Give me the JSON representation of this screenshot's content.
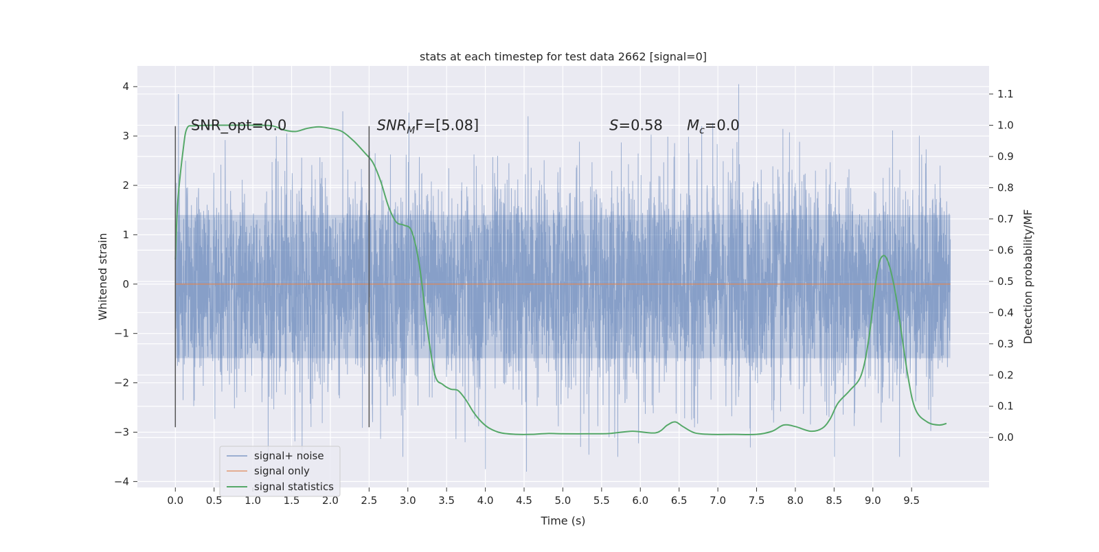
{
  "chart_data": {
    "type": "line",
    "title": "stats at each timestep for test data 2662 [signal=0]",
    "xlabel": "Time (s)",
    "ylabel": "Whitened strain",
    "y2label": "Detection probability/MF",
    "xlim": [
      -0.49,
      10.5
    ],
    "ylim": [
      -4.12,
      4.42
    ],
    "y2lim": [
      -0.16,
      1.19
    ],
    "x_ticks": [
      0.0,
      0.5,
      1.0,
      1.5,
      2.0,
      2.5,
      3.0,
      3.5,
      4.0,
      4.5,
      5.0,
      5.5,
      6.0,
      6.5,
      7.0,
      7.5,
      8.0,
      8.5,
      9.0,
      9.5
    ],
    "x_tick_labels": [
      "0.0",
      "0.5",
      "1.0",
      "1.5",
      "2.0",
      "2.5",
      "3.0",
      "3.5",
      "4.0",
      "4.5",
      "5.0",
      "5.5",
      "6.0",
      "6.5",
      "7.0",
      "7.5",
      "8.0",
      "8.5",
      "9.0",
      "9.5"
    ],
    "y_ticks": [
      -4,
      -3,
      -2,
      -1,
      0,
      1,
      2,
      3,
      4
    ],
    "y_tick_labels": [
      "−4",
      "−3",
      "−2",
      "−1",
      "0",
      "1",
      "2",
      "3",
      "4"
    ],
    "y2_ticks": [
      0.0,
      0.1,
      0.2,
      0.3,
      0.4,
      0.5,
      0.6,
      0.7,
      0.8,
      0.9,
      1.0,
      1.1
    ],
    "y2_tick_labels": [
      "0.0",
      "0.1",
      "0.2",
      "0.3",
      "0.4",
      "0.5",
      "0.6",
      "0.7",
      "0.8",
      "0.9",
      "1.0",
      "1.1"
    ],
    "grid": true,
    "legend_position": "lower-left",
    "legend": [
      "signal+ noise",
      "signal only",
      "signal statistics"
    ],
    "colors": {
      "noise": "#4c72b0",
      "signal": "#dd8452",
      "stats": "#55a868",
      "axes_bg": "#eaeaf2",
      "grid": "#ffffff",
      "vline": "#555555"
    },
    "series": [
      {
        "name": "signal+ noise",
        "axis": "left",
        "x_range": [
          0.0,
          10.0
        ],
        "approx_core_band": [
          -1.5,
          1.4
        ],
        "approx_peak_range": [
          -3.8,
          4.05
        ],
        "notable_peaks": [
          [
            0.04,
            3.85
          ],
          [
            7.27,
            4.05
          ],
          [
            4.55,
            3.4
          ],
          [
            4.53,
            -3.8
          ],
          [
            4.0,
            -3.75
          ]
        ]
      },
      {
        "name": "signal only",
        "axis": "left",
        "x": [
          0.0,
          10.0
        ],
        "y": [
          0.0,
          0.0
        ]
      },
      {
        "name": "signal statistics",
        "axis": "right",
        "x": [
          0.0,
          0.03,
          0.1,
          0.15,
          0.25,
          0.5,
          0.75,
          1.0,
          1.25,
          1.4,
          1.55,
          1.7,
          1.85,
          2.0,
          2.15,
          2.3,
          2.45,
          2.55,
          2.65,
          2.75,
          2.85,
          2.95,
          3.05,
          3.15,
          3.25,
          3.35,
          3.45,
          3.55,
          3.65,
          3.75,
          3.85,
          3.95,
          4.05,
          4.2,
          4.4,
          4.6,
          4.8,
          5.0,
          5.3,
          5.6,
          5.9,
          6.2,
          6.35,
          6.45,
          6.55,
          6.7,
          6.9,
          7.2,
          7.5,
          7.7,
          7.85,
          8.0,
          8.2,
          8.35,
          8.45,
          8.55,
          8.7,
          8.85,
          8.95,
          9.05,
          9.12,
          9.2,
          9.3,
          9.45,
          9.55,
          9.7,
          9.85,
          9.95
        ],
        "y": [
          0.57,
          0.75,
          0.92,
          0.99,
          0.998,
          1.0,
          1.0,
          1.0,
          0.998,
          0.985,
          0.98,
          0.99,
          0.995,
          0.99,
          0.98,
          0.95,
          0.91,
          0.88,
          0.82,
          0.74,
          0.69,
          0.68,
          0.66,
          0.55,
          0.35,
          0.2,
          0.17,
          0.155,
          0.15,
          0.12,
          0.08,
          0.05,
          0.03,
          0.015,
          0.01,
          0.01,
          0.013,
          0.012,
          0.012,
          0.013,
          0.02,
          0.015,
          0.04,
          0.05,
          0.035,
          0.015,
          0.01,
          0.01,
          0.01,
          0.02,
          0.04,
          0.035,
          0.02,
          0.03,
          0.06,
          0.11,
          0.15,
          0.2,
          0.32,
          0.52,
          0.58,
          0.56,
          0.45,
          0.2,
          0.09,
          0.05,
          0.04,
          0.045
        ]
      }
    ],
    "vertical_lines": [
      {
        "x": 0.0,
        "y0": -2.9,
        "y1": 3.2
      },
      {
        "x": 2.5,
        "y0": -2.9,
        "y1": 3.2
      }
    ],
    "annotations": {
      "snr_opt": {
        "x": 0.2,
        "y": 3.2,
        "text": "SNR_opt=0.0"
      },
      "snr_mf": {
        "x": 2.6,
        "y": 3.2,
        "main": "SNR",
        "sub": "M",
        "rest": "F=[5.08]"
      },
      "s_stat": {
        "x": 5.6,
        "y": 3.2,
        "main": "S",
        "rest": "=0.58"
      },
      "mc_stat": {
        "x": 6.6,
        "y": 3.2,
        "main": "M",
        "sub": "c",
        "rest": "=0.0"
      }
    }
  }
}
